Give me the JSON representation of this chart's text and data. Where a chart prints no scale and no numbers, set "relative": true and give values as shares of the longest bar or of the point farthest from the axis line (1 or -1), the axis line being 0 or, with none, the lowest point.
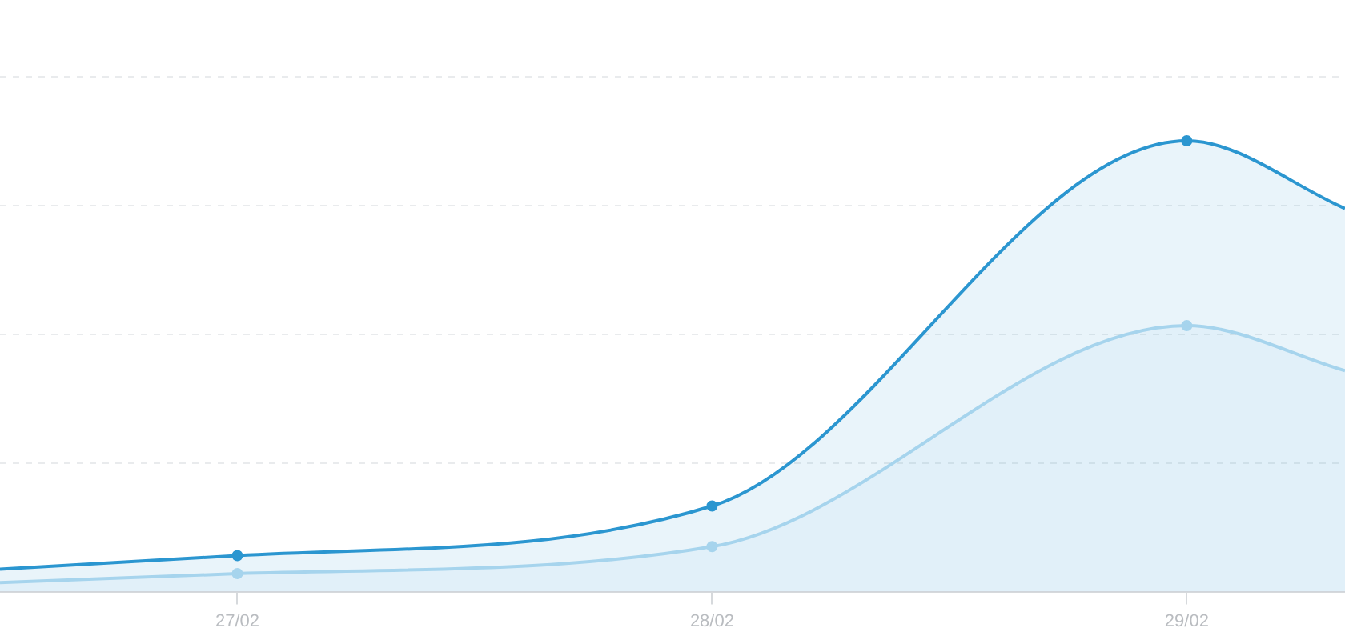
{
  "chart_data": {
    "type": "area",
    "relative": true,
    "x": [
      "--02-26T12:00",
      "--02-27",
      "--02-28",
      "--02-29",
      "--02-29T08:00"
    ],
    "xlim": [
      "--02-26T12:00",
      "--02-29T08:00"
    ],
    "xticks": [
      {
        "value": "--02-27",
        "label": "27/02"
      },
      {
        "value": "--02-28",
        "label": "28/02"
      },
      {
        "value": "--02-29",
        "label": "29/02"
      }
    ],
    "series": [
      {
        "color": "#2b96d0",
        "values": [
          0.05,
          0.08,
          0.19,
          1,
          0.85
        ]
      },
      {
        "color": "#b5dcf1",
        "values": [
          0.02,
          0.04,
          0.1,
          0.59,
          0.49
        ]
      }
    ],
    "grid": "y",
    "legend": false,
    "tick_labels": "x",
    "marker": "circle",
    "line_style": "solid"
  }
}
